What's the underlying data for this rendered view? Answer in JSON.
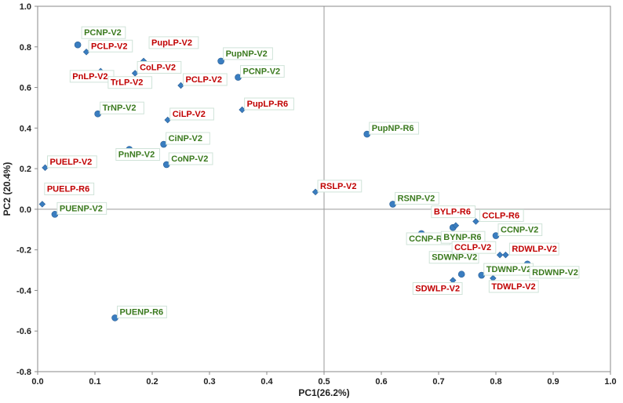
{
  "chart_data": {
    "type": "scatter",
    "xlabel": "PC1(26.2%)",
    "ylabel": "PC2 (20.4%)",
    "xlim": [
      0.0,
      1.0
    ],
    "ylim": [
      -0.8,
      1.0
    ],
    "xticks": [
      "0.0",
      "0.1",
      "0.2",
      "0.3",
      "0.4",
      "0.5",
      "0.6",
      "0.7",
      "0.8",
      "0.9",
      "1.0"
    ],
    "yticks": [
      "1.0",
      "0.8",
      "0.6",
      "0.4",
      "0.2",
      "0.0",
      "-0.2",
      "-0.4",
      "-0.6",
      "-0.8"
    ],
    "reference_lines": {
      "x": 0.5,
      "y": 0.0
    },
    "colors": {
      "marker": "#3a7dc0",
      "red_label": "#c00000",
      "green_label": "#3a7a1e",
      "label_border": "#cfe3d8",
      "ref_line": "#9a9a9a",
      "frame": "#8a8a8a"
    },
    "series": [
      {
        "name": "NP",
        "marker": "circle",
        "label_color": "green",
        "points": [
          {
            "label": "PCNP-V2",
            "x": 0.07,
            "y": 0.81
          },
          {
            "label": "PupNP-V2",
            "x": 0.32,
            "y": 0.73
          },
          {
            "label": "PCNP-V2",
            "x": 0.35,
            "y": 0.65
          },
          {
            "label": "TrNP-V2",
            "x": 0.105,
            "y": 0.47
          },
          {
            "label": "CiNP-V2",
            "x": 0.22,
            "y": 0.32
          },
          {
            "label": "PnNP-V2",
            "x": 0.16,
            "y": 0.295
          },
          {
            "label": "CoNP-V2",
            "x": 0.225,
            "y": 0.22
          },
          {
            "label": "PUENP-V2",
            "x": 0.03,
            "y": -0.025
          },
          {
            "label": "PupNP-R6",
            "x": 0.575,
            "y": 0.37
          },
          {
            "label": "RSNP-V2",
            "x": 0.62,
            "y": 0.025
          },
          {
            "label": "CCNP-R6",
            "x": 0.67,
            "y": -0.12
          },
          {
            "label": "BYNP-R6",
            "x": 0.725,
            "y": -0.09
          },
          {
            "label": "CCNP-V2",
            "x": 0.8,
            "y": -0.13
          },
          {
            "label": "SDWNP-V2",
            "x": 0.74,
            "y": -0.32
          },
          {
            "label": "TDWNP-V2",
            "x": 0.775,
            "y": -0.325
          },
          {
            "label": "RDWNP-V2",
            "x": 0.855,
            "y": -0.27
          },
          {
            "label": "PUENP-R6",
            "x": 0.135,
            "y": -0.535
          }
        ]
      },
      {
        "name": "LP",
        "marker": "diamond",
        "label_color": "red",
        "points": [
          {
            "label": "PCLP-V2",
            "x": 0.085,
            "y": 0.775
          },
          {
            "label": "PupLP-V2",
            "x": 0.185,
            "y": 0.73
          },
          {
            "label": "PnLP-V2",
            "x": 0.11,
            "y": 0.68
          },
          {
            "label": "CoLP-V2",
            "x": 0.17,
            "y": 0.67
          },
          {
            "label": "PCLP-V2",
            "x": 0.25,
            "y": 0.61
          },
          {
            "label": "TrLP-V2",
            "x": 0.108,
            "y": 0.665
          },
          {
            "label": "PupLP-R6",
            "x": 0.357,
            "y": 0.49
          },
          {
            "label": "CiLP-V2",
            "x": 0.227,
            "y": 0.44
          },
          {
            "label": "PUELP-V2",
            "x": 0.013,
            "y": 0.205
          },
          {
            "label": "PUELP-R6",
            "x": 0.008,
            "y": 0.025
          },
          {
            "label": "RSLP-V2",
            "x": 0.485,
            "y": 0.085
          },
          {
            "label": "BYLP-R6",
            "x": 0.73,
            "y": -0.08
          },
          {
            "label": "CCLP-R6",
            "x": 0.765,
            "y": -0.06
          },
          {
            "label": "CCLP-V2",
            "x": 0.807,
            "y": -0.225
          },
          {
            "label": "RDWLP-V2",
            "x": 0.817,
            "y": -0.225
          },
          {
            "label": "TDWLP-V2",
            "x": 0.795,
            "y": -0.34
          },
          {
            "label": "SDWLP-V2",
            "x": 0.725,
            "y": -0.35
          }
        ]
      }
    ]
  }
}
